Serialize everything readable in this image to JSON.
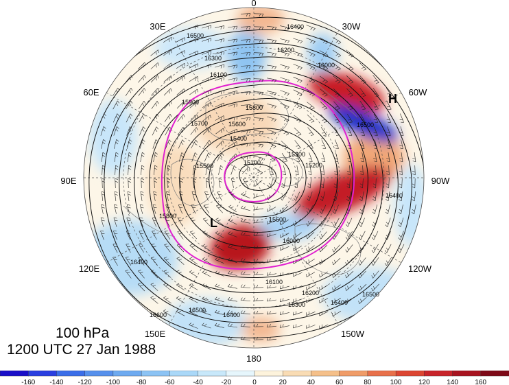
{
  "title": {
    "level": "100 hPa",
    "time": "1200 UTC 27 Jan 1988"
  },
  "longitude_labels": [
    "0",
    "30W",
    "60W",
    "90W",
    "120W",
    "150W",
    "180",
    "150E",
    "120E",
    "90E",
    "60E",
    "30E"
  ],
  "pressure_systems": [
    {
      "symbol": "H",
      "meaning": "high"
    },
    {
      "symbol": "L",
      "meaning": "low"
    }
  ],
  "contour_labels": [
    "16500",
    "16400",
    "16300",
    "16200",
    "16100",
    "16000",
    "15900",
    "15800",
    "15700",
    "15600",
    "15500",
    "15400",
    "15300",
    "15200",
    "15100",
    "16600"
  ],
  "colorbar": {
    "labels": [
      "-160",
      "-140",
      "-120",
      "-100",
      "-80",
      "-60",
      "-40",
      "-20",
      "0",
      "20",
      "40",
      "60",
      "80",
      "100",
      "120",
      "140",
      "160"
    ],
    "colors": [
      "#1a0fc8",
      "#2a3fe0",
      "#3b6ee8",
      "#5690ec",
      "#6eaaf0",
      "#8cc3f4",
      "#aad8f8",
      "#c8e8fa",
      "#e6f6fc",
      "#fdf3dc",
      "#f9dcb4",
      "#f5c08a",
      "#f09c68",
      "#e8704a",
      "#dc4632",
      "#c8242a",
      "#a81420",
      "#7e0a18"
    ]
  }
}
